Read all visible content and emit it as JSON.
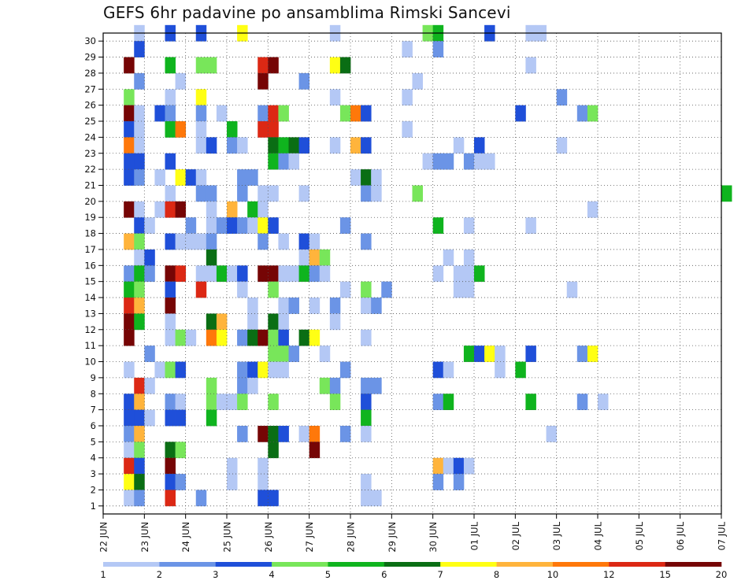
{
  "title": "GEFS 6hr padavine po ansamblima Rimski Sancevi",
  "chart_data": {
    "type": "heatmap",
    "title": "GEFS 6hr padavine po ansamblima Rimski Sancevi",
    "xlabel": "",
    "ylabel": "",
    "x_tick_labels": [
      "22 JUN",
      "23 JUN",
      "24 JUN",
      "25 JUN",
      "26 JUN",
      "27 JUN",
      "28 JUN",
      "29 JUN",
      "30 JUN",
      "01 JUL",
      "02 JUL",
      "03 JUL",
      "04 JUL",
      "05 JUL",
      "06 JUL",
      "07 JUL"
    ],
    "x_step_hours": 6,
    "xlim_steps": [
      0,
      60
    ],
    "y_tick_labels": [
      "1",
      "2",
      "3",
      "4",
      "5",
      "6",
      "7",
      "8",
      "9",
      "10",
      "11",
      "12",
      "13",
      "14",
      "15",
      "16",
      "17",
      "18",
      "19",
      "20",
      "21",
      "22",
      "23",
      "24",
      "25",
      "26",
      "27",
      "28",
      "29",
      "30"
    ],
    "ylim": [
      0,
      30
    ],
    "grid": true,
    "colorbar": {
      "boundaries": [
        1,
        2,
        3,
        4,
        5,
        6,
        7,
        8,
        10,
        12,
        15,
        20
      ],
      "tick_labels": [
        "1",
        "2",
        "3",
        "4",
        "5",
        "6",
        "7",
        "8",
        "10",
        "12",
        "15",
        "20"
      ],
      "colors": [
        "#b4c8f5",
        "#6b94e6",
        "#1f4fd9",
        "#78e65a",
        "#0fb41e",
        "#0a6e14",
        "#ffff14",
        "#ffb43c",
        "#ff780a",
        "#dc2814",
        "#760505"
      ]
    },
    "cells_format": "member (1-30), time step index (0 = 22 JUN 00Z, 6-hourly), color class index 1-11",
    "cells": [
      [
        30,
        3,
        1
      ],
      [
        30,
        6,
        3
      ],
      [
        30,
        9,
        3
      ],
      [
        30,
        13,
        7
      ],
      [
        30,
        22,
        1
      ],
      [
        30,
        31,
        4
      ],
      [
        30,
        32,
        5
      ],
      [
        30,
        37,
        3
      ],
      [
        30,
        41,
        1
      ],
      [
        30,
        42,
        1
      ],
      [
        29,
        3,
        3
      ],
      [
        29,
        29,
        1
      ],
      [
        29,
        32,
        2
      ],
      [
        28,
        2,
        11
      ],
      [
        28,
        6,
        5
      ],
      [
        28,
        9,
        4
      ],
      [
        28,
        10,
        4
      ],
      [
        28,
        15,
        10
      ],
      [
        28,
        16,
        11
      ],
      [
        28,
        22,
        7
      ],
      [
        28,
        23,
        6
      ],
      [
        28,
        41,
        1
      ],
      [
        27,
        3,
        2
      ],
      [
        27,
        7,
        1
      ],
      [
        27,
        15,
        11
      ],
      [
        27,
        19,
        2
      ],
      [
        27,
        30,
        1
      ],
      [
        26,
        2,
        4
      ],
      [
        26,
        6,
        1
      ],
      [
        26,
        9,
        7
      ],
      [
        26,
        22,
        1
      ],
      [
        26,
        29,
        1
      ],
      [
        26,
        44,
        2
      ],
      [
        25,
        2,
        11
      ],
      [
        25,
        3,
        1
      ],
      [
        25,
        5,
        3
      ],
      [
        25,
        6,
        2
      ],
      [
        25,
        9,
        2
      ],
      [
        25,
        11,
        1
      ],
      [
        25,
        15,
        2
      ],
      [
        25,
        16,
        10
      ],
      [
        25,
        17,
        4
      ],
      [
        25,
        23,
        4
      ],
      [
        25,
        24,
        9
      ],
      [
        25,
        25,
        3
      ],
      [
        25,
        40,
        3
      ],
      [
        25,
        46,
        2
      ],
      [
        25,
        47,
        4
      ],
      [
        24,
        2,
        3
      ],
      [
        24,
        3,
        1
      ],
      [
        24,
        6,
        5
      ],
      [
        24,
        7,
        9
      ],
      [
        24,
        9,
        1
      ],
      [
        24,
        12,
        5
      ],
      [
        24,
        15,
        10
      ],
      [
        24,
        16,
        10
      ],
      [
        24,
        29,
        1
      ],
      [
        23,
        2,
        9
      ],
      [
        23,
        3,
        1
      ],
      [
        23,
        9,
        1
      ],
      [
        23,
        10,
        3
      ],
      [
        23,
        12,
        2
      ],
      [
        23,
        13,
        1
      ],
      [
        23,
        16,
        6
      ],
      [
        23,
        17,
        5
      ],
      [
        23,
        18,
        6
      ],
      [
        23,
        19,
        3
      ],
      [
        23,
        22,
        1
      ],
      [
        23,
        24,
        8
      ],
      [
        23,
        25,
        3
      ],
      [
        23,
        34,
        1
      ],
      [
        23,
        36,
        3
      ],
      [
        23,
        44,
        1
      ],
      [
        22,
        2,
        3
      ],
      [
        22,
        3,
        3
      ],
      [
        22,
        6,
        3
      ],
      [
        22,
        16,
        5
      ],
      [
        22,
        17,
        2
      ],
      [
        22,
        18,
        1
      ],
      [
        22,
        31,
        1
      ],
      [
        22,
        32,
        2
      ],
      [
        22,
        33,
        2
      ],
      [
        22,
        35,
        2
      ],
      [
        22,
        36,
        1
      ],
      [
        22,
        37,
        1
      ],
      [
        21,
        2,
        3
      ],
      [
        21,
        3,
        2
      ],
      [
        21,
        5,
        1
      ],
      [
        21,
        7,
        7
      ],
      [
        21,
        8,
        3
      ],
      [
        21,
        9,
        1
      ],
      [
        21,
        13,
        2
      ],
      [
        21,
        14,
        2
      ],
      [
        21,
        24,
        1
      ],
      [
        21,
        25,
        6
      ],
      [
        21,
        26,
        1
      ],
      [
        20,
        6,
        1
      ],
      [
        20,
        9,
        2
      ],
      [
        20,
        10,
        2
      ],
      [
        20,
        13,
        2
      ],
      [
        20,
        15,
        1
      ],
      [
        20,
        16,
        1
      ],
      [
        20,
        19,
        1
      ],
      [
        20,
        25,
        2
      ],
      [
        20,
        26,
        1
      ],
      [
        20,
        30,
        4
      ],
      [
        20,
        60,
        5
      ],
      [
        19,
        2,
        11
      ],
      [
        19,
        3,
        1
      ],
      [
        19,
        5,
        1
      ],
      [
        19,
        6,
        10
      ],
      [
        19,
        7,
        11
      ],
      [
        19,
        10,
        1
      ],
      [
        19,
        12,
        8
      ],
      [
        19,
        14,
        5
      ],
      [
        19,
        15,
        1
      ],
      [
        19,
        47,
        1
      ],
      [
        18,
        3,
        3
      ],
      [
        18,
        4,
        1
      ],
      [
        18,
        8,
        2
      ],
      [
        18,
        10,
        1
      ],
      [
        18,
        11,
        2
      ],
      [
        18,
        12,
        3
      ],
      [
        18,
        13,
        2
      ],
      [
        18,
        14,
        1
      ],
      [
        18,
        15,
        7
      ],
      [
        18,
        16,
        3
      ],
      [
        18,
        23,
        2
      ],
      [
        18,
        32,
        5
      ],
      [
        18,
        35,
        1
      ],
      [
        18,
        41,
        1
      ],
      [
        17,
        2,
        8
      ],
      [
        17,
        3,
        4
      ],
      [
        17,
        6,
        3
      ],
      [
        17,
        7,
        1
      ],
      [
        17,
        8,
        1
      ],
      [
        17,
        9,
        1
      ],
      [
        17,
        10,
        2
      ],
      [
        17,
        15,
        2
      ],
      [
        17,
        17,
        1
      ],
      [
        17,
        19,
        3
      ],
      [
        17,
        20,
        1
      ],
      [
        17,
        25,
        2
      ],
      [
        16,
        3,
        1
      ],
      [
        16,
        4,
        3
      ],
      [
        16,
        10,
        6
      ],
      [
        16,
        19,
        1
      ],
      [
        16,
        20,
        8
      ],
      [
        16,
        21,
        4
      ],
      [
        16,
        33,
        1
      ],
      [
        16,
        35,
        1
      ],
      [
        15,
        2,
        2
      ],
      [
        15,
        3,
        5
      ],
      [
        15,
        4,
        2
      ],
      [
        15,
        6,
        11
      ],
      [
        15,
        7,
        10
      ],
      [
        15,
        9,
        1
      ],
      [
        15,
        10,
        1
      ],
      [
        15,
        11,
        5
      ],
      [
        15,
        12,
        1
      ],
      [
        15,
        13,
        3
      ],
      [
        15,
        15,
        11
      ],
      [
        15,
        16,
        11
      ],
      [
        15,
        17,
        1
      ],
      [
        15,
        18,
        1
      ],
      [
        15,
        19,
        5
      ],
      [
        15,
        20,
        2
      ],
      [
        15,
        21,
        1
      ],
      [
        15,
        32,
        1
      ],
      [
        15,
        34,
        1
      ],
      [
        15,
        35,
        1
      ],
      [
        15,
        36,
        5
      ],
      [
        14,
        2,
        5
      ],
      [
        14,
        3,
        4
      ],
      [
        14,
        6,
        3
      ],
      [
        14,
        9,
        10
      ],
      [
        14,
        13,
        1
      ],
      [
        14,
        16,
        4
      ],
      [
        14,
        23,
        1
      ],
      [
        14,
        25,
        4
      ],
      [
        14,
        27,
        2
      ],
      [
        14,
        34,
        1
      ],
      [
        14,
        35,
        1
      ],
      [
        14,
        45,
        1
      ],
      [
        13,
        2,
        10
      ],
      [
        13,
        3,
        8
      ],
      [
        13,
        6,
        11
      ],
      [
        13,
        14,
        1
      ],
      [
        13,
        17,
        1
      ],
      [
        13,
        18,
        2
      ],
      [
        13,
        20,
        1
      ],
      [
        13,
        22,
        2
      ],
      [
        13,
        25,
        1
      ],
      [
        13,
        26,
        2
      ],
      [
        12,
        2,
        11
      ],
      [
        12,
        3,
        5
      ],
      [
        12,
        6,
        1
      ],
      [
        12,
        10,
        6
      ],
      [
        12,
        11,
        8
      ],
      [
        12,
        14,
        1
      ],
      [
        12,
        16,
        6
      ],
      [
        12,
        17,
        1
      ],
      [
        12,
        22,
        1
      ],
      [
        11,
        2,
        11
      ],
      [
        11,
        6,
        1
      ],
      [
        11,
        7,
        4
      ],
      [
        11,
        8,
        1
      ],
      [
        11,
        10,
        9
      ],
      [
        11,
        11,
        7
      ],
      [
        11,
        13,
        2
      ],
      [
        11,
        14,
        6
      ],
      [
        11,
        15,
        11
      ],
      [
        11,
        16,
        4
      ],
      [
        11,
        17,
        3
      ],
      [
        11,
        19,
        6
      ],
      [
        11,
        20,
        7
      ],
      [
        11,
        25,
        1
      ],
      [
        10,
        4,
        2
      ],
      [
        10,
        16,
        4
      ],
      [
        10,
        17,
        4
      ],
      [
        10,
        18,
        2
      ],
      [
        10,
        21,
        1
      ],
      [
        10,
        35,
        5
      ],
      [
        10,
        36,
        3
      ],
      [
        10,
        37,
        7
      ],
      [
        10,
        38,
        1
      ],
      [
        10,
        41,
        3
      ],
      [
        10,
        46,
        2
      ],
      [
        10,
        47,
        7
      ],
      [
        9,
        2,
        1
      ],
      [
        9,
        5,
        1
      ],
      [
        9,
        6,
        4
      ],
      [
        9,
        7,
        3
      ],
      [
        9,
        13,
        2
      ],
      [
        9,
        14,
        3
      ],
      [
        9,
        15,
        7
      ],
      [
        9,
        16,
        1
      ],
      [
        9,
        17,
        1
      ],
      [
        9,
        23,
        2
      ],
      [
        9,
        32,
        3
      ],
      [
        9,
        33,
        1
      ],
      [
        9,
        38,
        1
      ],
      [
        9,
        40,
        5
      ],
      [
        8,
        3,
        10
      ],
      [
        8,
        4,
        1
      ],
      [
        8,
        10,
        4
      ],
      [
        8,
        13,
        2
      ],
      [
        8,
        14,
        1
      ],
      [
        8,
        21,
        4
      ],
      [
        8,
        22,
        2
      ],
      [
        8,
        25,
        2
      ],
      [
        8,
        26,
        2
      ],
      [
        7,
        2,
        3
      ],
      [
        7,
        3,
        8
      ],
      [
        7,
        6,
        2
      ],
      [
        7,
        7,
        1
      ],
      [
        7,
        10,
        4
      ],
      [
        7,
        11,
        1
      ],
      [
        7,
        12,
        1
      ],
      [
        7,
        13,
        4
      ],
      [
        7,
        16,
        4
      ],
      [
        7,
        22,
        4
      ],
      [
        7,
        25,
        3
      ],
      [
        7,
        32,
        2
      ],
      [
        7,
        33,
        5
      ],
      [
        7,
        41,
        5
      ],
      [
        7,
        46,
        2
      ],
      [
        7,
        48,
        1
      ],
      [
        6,
        2,
        3
      ],
      [
        6,
        3,
        3
      ],
      [
        6,
        4,
        1
      ],
      [
        6,
        6,
        3
      ],
      [
        6,
        7,
        3
      ],
      [
        6,
        10,
        5
      ],
      [
        6,
        25,
        5
      ],
      [
        5,
        2,
        2
      ],
      [
        5,
        3,
        8
      ],
      [
        5,
        13,
        2
      ],
      [
        5,
        15,
        11
      ],
      [
        5,
        16,
        6
      ],
      [
        5,
        17,
        3
      ],
      [
        5,
        19,
        1
      ],
      [
        5,
        20,
        9
      ],
      [
        5,
        23,
        2
      ],
      [
        5,
        25,
        1
      ],
      [
        5,
        43,
        1
      ],
      [
        4,
        2,
        1
      ],
      [
        4,
        3,
        4
      ],
      [
        4,
        6,
        6
      ],
      [
        4,
        7,
        4
      ],
      [
        4,
        16,
        6
      ],
      [
        4,
        20,
        11
      ],
      [
        3,
        2,
        10
      ],
      [
        3,
        3,
        3
      ],
      [
        3,
        6,
        11
      ],
      [
        3,
        12,
        1
      ],
      [
        3,
        15,
        1
      ],
      [
        3,
        32,
        8
      ],
      [
        3,
        33,
        1
      ],
      [
        3,
        34,
        3
      ],
      [
        3,
        35,
        1
      ],
      [
        2,
        2,
        7
      ],
      [
        2,
        3,
        6
      ],
      [
        2,
        6,
        3
      ],
      [
        2,
        7,
        2
      ],
      [
        2,
        12,
        1
      ],
      [
        2,
        15,
        1
      ],
      [
        2,
        25,
        1
      ],
      [
        2,
        32,
        2
      ],
      [
        2,
        34,
        2
      ],
      [
        1,
        2,
        1
      ],
      [
        1,
        3,
        2
      ],
      [
        1,
        6,
        10
      ],
      [
        1,
        9,
        2
      ],
      [
        1,
        15,
        3
      ],
      [
        1,
        16,
        3
      ],
      [
        1,
        25,
        1
      ],
      [
        1,
        26,
        1
      ]
    ]
  }
}
